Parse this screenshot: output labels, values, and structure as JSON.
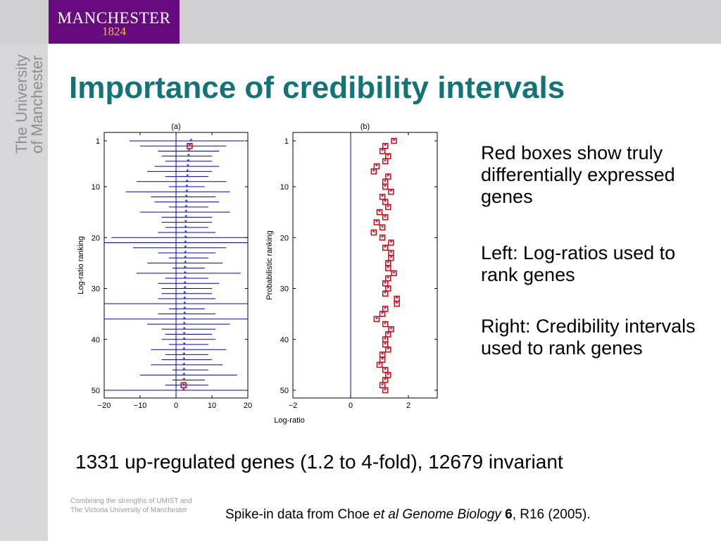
{
  "colors": {
    "brand_purple": "#660a7e",
    "title_teal": "#137478",
    "series_blue": "#0000cc",
    "highlight_red": "#e00000"
  },
  "logo": {
    "name": "MANCHESTER",
    "year": "1824"
  },
  "brand_vertical": {
    "line1": "The University",
    "line2": "of Manchester"
  },
  "title": "Importance of credibility intervals",
  "bullets": [
    "Red boxes show truly differentially expressed genes",
    "Left: Log-ratios used to rank genes",
    "Right: Credibility intervals used to rank genes"
  ],
  "caption": "1331 up-regulated genes (1.2 to 4-fold), 12679 invariant",
  "footer_small": {
    "line1": "Combining the strengths of UMIST and",
    "line2": "The Victoria University of Manchester"
  },
  "citation": {
    "prefix": "Spike-in data from Choe ",
    "italic": "et al Genome Biology",
    "bold": "6",
    "suffix": ", R16 (2005)."
  },
  "chart_data": [
    {
      "type": "scatter",
      "title": "(a)",
      "xlabel": "",
      "ylabel": "Log-ratio ranking",
      "xlim": [
        -20,
        20
      ],
      "ylim": [
        1,
        50
      ],
      "xticks": [
        "-20",
        "-10",
        "0",
        "10",
        "20"
      ],
      "yticks": [
        "1",
        "10",
        "20",
        "30",
        "40",
        "50"
      ],
      "x": [
        4.2,
        3.8,
        3.6,
        3.5,
        3.4,
        3.3,
        3.2,
        3.2,
        3.1,
        3.0,
        3.0,
        2.9,
        2.9,
        2.8,
        2.8,
        2.8,
        2.7,
        2.7,
        2.7,
        2.7,
        2.6,
        2.6,
        2.6,
        2.6,
        2.6,
        2.5,
        2.5,
        2.5,
        2.5,
        2.5,
        2.4,
        2.4,
        2.4,
        2.4,
        2.4,
        2.3,
        2.3,
        2.3,
        2.3,
        2.3,
        2.3,
        2.2,
        2.2,
        2.2,
        2.2,
        2.2,
        2.2,
        2.2,
        2.1,
        2.1
      ],
      "lower": [
        -13,
        -10,
        -5,
        -4,
        -3,
        -6,
        -8,
        -3,
        -11,
        -2,
        -14,
        -7,
        -6,
        -2,
        -10,
        -4,
        -4,
        -3,
        -5,
        -18,
        -21,
        -12,
        -5,
        -2,
        -8,
        -1,
        -11,
        -3,
        -5,
        -4,
        -4,
        -5,
        -20,
        -2,
        -5,
        -20,
        -8,
        -4,
        -3,
        -4,
        -2,
        -7,
        -3,
        -4,
        -7,
        -1,
        -10,
        -1,
        -3,
        -20
      ],
      "upper": [
        19,
        14,
        12,
        10,
        10,
        12,
        10,
        9,
        14,
        8,
        15,
        11,
        12,
        9,
        15,
        10,
        10,
        9,
        11,
        20,
        20,
        14,
        11,
        9,
        13,
        8,
        18,
        9,
        12,
        10,
        10,
        11,
        20,
        8,
        11,
        20,
        15,
        11,
        10,
        11,
        9,
        14,
        9,
        10,
        13,
        9,
        17,
        8,
        9,
        20
      ],
      "highlight_ranks": [
        2,
        49
      ]
    },
    {
      "type": "scatter",
      "title": "(b)",
      "xlabel": "Log-ratio",
      "ylabel": "Probabilistic ranking",
      "xlim": [
        -2,
        3
      ],
      "ylim": [
        1,
        50
      ],
      "xticks": [
        "-2",
        "0",
        "2"
      ],
      "yticks": [
        "1",
        "10",
        "20",
        "30",
        "40",
        "50"
      ],
      "x": [
        1.5,
        1.2,
        1.1,
        1.3,
        1.2,
        0.9,
        0.8,
        1.3,
        1.2,
        1.2,
        1.4,
        1.1,
        1.2,
        1.3,
        1.0,
        1.2,
        0.9,
        1.1,
        0.8,
        1.1,
        1.4,
        1.2,
        1.4,
        1.4,
        1.3,
        1.3,
        1.5,
        1.3,
        1.2,
        1.3,
        1.2,
        1.6,
        1.6,
        1.2,
        1.1,
        0.9,
        1.2,
        1.4,
        1.3,
        1.2,
        1.2,
        1.3,
        1.1,
        1.1,
        1.0,
        1.2,
        1.3,
        1.2,
        1.1,
        1.2
      ],
      "highlight_ranks": [
        1,
        2,
        3,
        4,
        5,
        6,
        7,
        8,
        9,
        10,
        11,
        12,
        13,
        14,
        15,
        16,
        17,
        18,
        19,
        20,
        21,
        22,
        23,
        24,
        25,
        26,
        27,
        28,
        29,
        30,
        31,
        32,
        33,
        34,
        35,
        36,
        37,
        38,
        39,
        40,
        41,
        42,
        43,
        44,
        45,
        46,
        47,
        48,
        49,
        50
      ]
    }
  ]
}
